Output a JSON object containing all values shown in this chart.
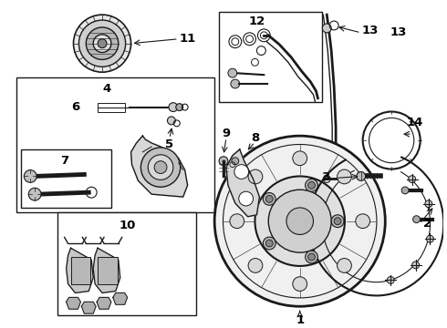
{
  "bg_color": "#ffffff",
  "line_color": "#1a1a1a",
  "label_color": "#000000",
  "figsize": [
    4.9,
    3.6
  ],
  "dpi": 100,
  "label_fs": 9.5
}
